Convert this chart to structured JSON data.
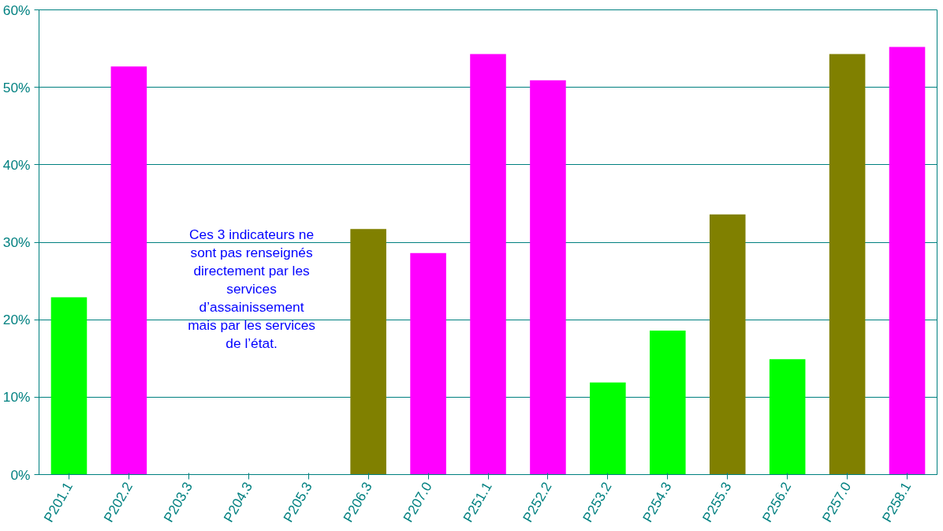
{
  "chart_data": {
    "type": "bar",
    "categories": [
      "P201.1",
      "P202.2",
      "P203.3",
      "P204.3",
      "P205.3",
      "P206.3",
      "P207.0",
      "P251.1",
      "P252.2",
      "P253.2",
      "P254.3",
      "P255.3",
      "P256.2",
      "P257.0",
      "P258.1"
    ],
    "values": [
      22.9,
      52.7,
      null,
      null,
      null,
      31.7,
      28.6,
      54.3,
      50.9,
      11.9,
      18.6,
      33.6,
      14.9,
      54.3,
      55.2
    ],
    "colors": [
      "#00ff00",
      "#ff00ff",
      "#00ff00",
      "#00ff00",
      "#00ff00",
      "#808000",
      "#ff00ff",
      "#ff00ff",
      "#ff00ff",
      "#00ff00",
      "#00ff00",
      "#808000",
      "#00ff00",
      "#808000",
      "#ff00ff"
    ],
    "ylim": [
      0,
      60
    ],
    "yticks": [
      {
        "value": 0,
        "label": "0%"
      },
      {
        "value": 10,
        "label": "10%"
      },
      {
        "value": 20,
        "label": "20%"
      },
      {
        "value": 30,
        "label": "30%"
      },
      {
        "value": 40,
        "label": "40%"
      },
      {
        "value": 50,
        "label": "50%"
      },
      {
        "value": 60,
        "label": "60%"
      }
    ],
    "grid": "y",
    "annotations": [
      "Ces 3 indicateurs ne\nsont pas renseignés\ndirectement par les\nservices\nd’assainissement\nmais par les services\nde l’état."
    ]
  }
}
